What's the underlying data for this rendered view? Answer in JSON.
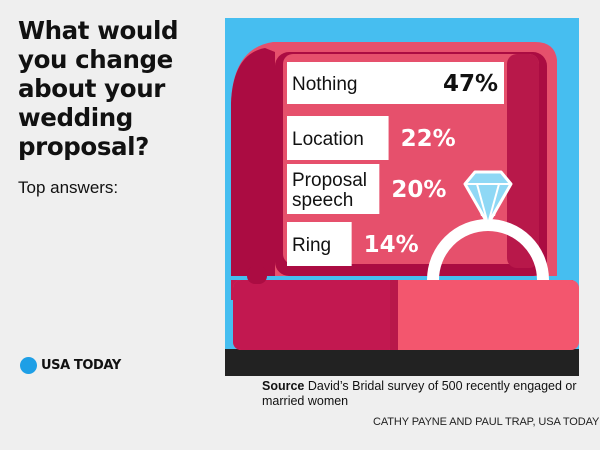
{
  "headline": "What would you change about your wedding proposal?",
  "subhead": "Top answers:",
  "brand": "USA TODAY",
  "source_label": "Source",
  "source_text": "David’s Bridal survey of 500 recently engaged or married women",
  "credit": "CATHY PAYNE AND PAUL TRAP, USA TODAY",
  "colors": {
    "sky": "#46bef0",
    "box_lid": "#e6506c",
    "box_inner": "#ab0c42",
    "box_base": "#f3566e",
    "box_front_dark": "#c21850",
    "ink": "#222222",
    "first_value": "#111111",
    "other_values": "#ffffff",
    "diamond": "#8fd8f5",
    "ring": "#ffffff"
  },
  "chart_data": {
    "type": "bar",
    "orientation": "horizontal",
    "categories": [
      "Nothing",
      "Location",
      "Proposal speech",
      "Ring"
    ],
    "label_lines": [
      [
        "Nothing"
      ],
      [
        "Location"
      ],
      [
        "Proposal",
        "speech"
      ],
      [
        "Ring"
      ]
    ],
    "values": [
      47,
      22,
      20,
      14
    ],
    "value_labels": [
      "47%",
      "22%",
      "20%",
      "14%"
    ],
    "unit": "%",
    "xlim": [
      0,
      47
    ]
  }
}
